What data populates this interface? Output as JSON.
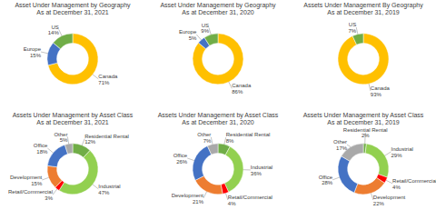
{
  "chart_data": [
    {
      "type": "pie",
      "title": "Asset Under Management by Geography\nAs at December 31, 2021",
      "categories": [
        "Canada",
        "Europe",
        "US"
      ],
      "values": [
        71,
        15,
        14
      ],
      "value_labels": [
        "71%",
        "15%",
        "14%"
      ],
      "colors": [
        "#FFC000",
        "#4472C4",
        "#70AD47"
      ],
      "data_labels": true
    },
    {
      "type": "pie",
      "title": "Asset Under Management by Geography\nAs at December 31, 2020",
      "categories": [
        "Canada",
        "Europe",
        "US"
      ],
      "values": [
        86,
        5,
        9
      ],
      "value_labels": [
        "86%",
        "5%",
        "9%"
      ],
      "colors": [
        "#FFC000",
        "#4472C4",
        "#70AD47"
      ],
      "data_labels": true
    },
    {
      "type": "pie",
      "title": "Assets Under Management By Geography\nAs at December 31, 2019",
      "categories": [
        "Canada",
        "US"
      ],
      "values": [
        93,
        7
      ],
      "value_labels": [
        "93%",
        "7%"
      ],
      "colors": [
        "#FFC000",
        "#70AD47"
      ],
      "data_labels": true
    },
    {
      "type": "pie",
      "title": "Assets Under Management by Asset Class\nAs at December 31, 2021",
      "categories": [
        "Residential Rental",
        "Industrial",
        "Retail/Commercial",
        "Development",
        "Office",
        "Other"
      ],
      "values": [
        12,
        47,
        3,
        15,
        18,
        5
      ],
      "value_labels": [
        "12%",
        "47%",
        "3%",
        "15%",
        "18%",
        "5%"
      ],
      "colors": [
        "#70AD47",
        "#92D050",
        "#FF0000",
        "#ED7D31",
        "#4472C4",
        "#A9A9A9"
      ],
      "data_labels": true
    },
    {
      "type": "pie",
      "title": "Assets Under Management by Asset Class\nAs at December 31, 2020",
      "categories": [
        "Residential Rental",
        "Industrial",
        "Retail/Commercial",
        "Development",
        "Office",
        "Other"
      ],
      "values": [
        8,
        36,
        4,
        21,
        26,
        7
      ],
      "value_labels": [
        "8%",
        "36%",
        "4%",
        "21%",
        "26%",
        "7%"
      ],
      "colors": [
        "#70AD47",
        "#92D050",
        "#FF0000",
        "#ED7D31",
        "#4472C4",
        "#A9A9A9"
      ],
      "data_labels": true
    },
    {
      "type": "pie",
      "title": "Assets Under Management by Asset Class\nAs at December 31, 2019",
      "categories": [
        "Residential Rental",
        "Industrial",
        "Retail/Commercial",
        "Development",
        "Office",
        "Other"
      ],
      "values": [
        2,
        29,
        4,
        22,
        28,
        17
      ],
      "value_labels": [
        "2%",
        "29%",
        "4%",
        "22%",
        "28%",
        "17%"
      ],
      "colors": [
        "#70AD47",
        "#92D050",
        "#FF0000",
        "#ED7D31",
        "#4472C4",
        "#A9A9A9"
      ],
      "data_labels": true
    }
  ]
}
